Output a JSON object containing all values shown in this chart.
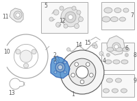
{
  "bg_color": "#ffffff",
  "lc": "#aaaaaa",
  "dc": "#555555",
  "hc": "#4488cc",
  "hc2": "#6699bb",
  "figsize": [
    2.0,
    1.47
  ],
  "dpi": 100
}
